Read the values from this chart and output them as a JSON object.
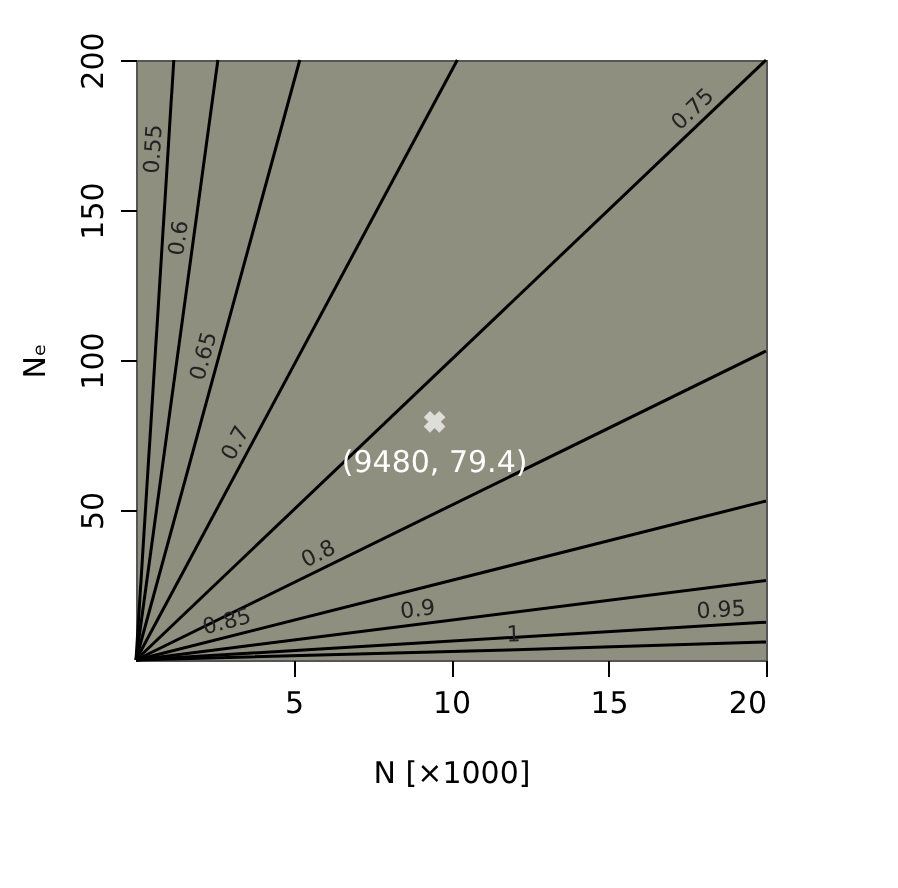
{
  "chart_data": {
    "type": "line",
    "xlabel": "N [×1000]",
    "ylabel": "Nₑ",
    "xlim": [
      0,
      20
    ],
    "ylim": [
      0,
      200
    ],
    "xticks": [
      5,
      10,
      15,
      20
    ],
    "yticks": [
      50,
      100,
      150,
      200
    ],
    "series": [
      {
        "name": "0.55",
        "color": "#000000",
        "x": [
          0,
          1.2
        ],
        "values": [
          0,
          200
        ]
      },
      {
        "name": "0.6",
        "color": "#000000",
        "x": [
          0,
          2.6
        ],
        "values": [
          0,
          200
        ]
      },
      {
        "name": "0.65",
        "color": "#000000",
        "x": [
          0,
          5.2
        ],
        "values": [
          0,
          200
        ]
      },
      {
        "name": "0.7",
        "color": "#000000",
        "x": [
          0,
          10.2
        ],
        "values": [
          0,
          200
        ]
      },
      {
        "name": "0.75",
        "color": "#000000",
        "x": [
          0,
          20
        ],
        "values": [
          0,
          200
        ]
      },
      {
        "name": "0.8",
        "color": "#000000",
        "x": [
          0,
          20
        ],
        "values": [
          0,
          103
        ]
      },
      {
        "name": "0.85",
        "color": "#000000",
        "x": [
          0,
          20
        ],
        "values": [
          0,
          53
        ]
      },
      {
        "name": "0.9",
        "color": "#000000",
        "x": [
          0,
          20
        ],
        "values": [
          0,
          26.5
        ]
      },
      {
        "name": "0.95",
        "color": "#000000",
        "x": [
          0,
          20
        ],
        "values": [
          0,
          12.6
        ]
      },
      {
        "name": "1",
        "color": "#000000",
        "x": [
          0,
          11.8,
          20
        ],
        "values": [
          0,
          3.3,
          6
        ]
      },
      {
        "type": "scatter",
        "marker": "cross",
        "color": "#ffffff",
        "x": [
          9.48
        ],
        "values": [
          79.4
        ]
      }
    ],
    "annotations": [
      {
        "text": "(9480, 79.4)",
        "x": 9.48,
        "y": 79.4
      }
    ]
  }
}
